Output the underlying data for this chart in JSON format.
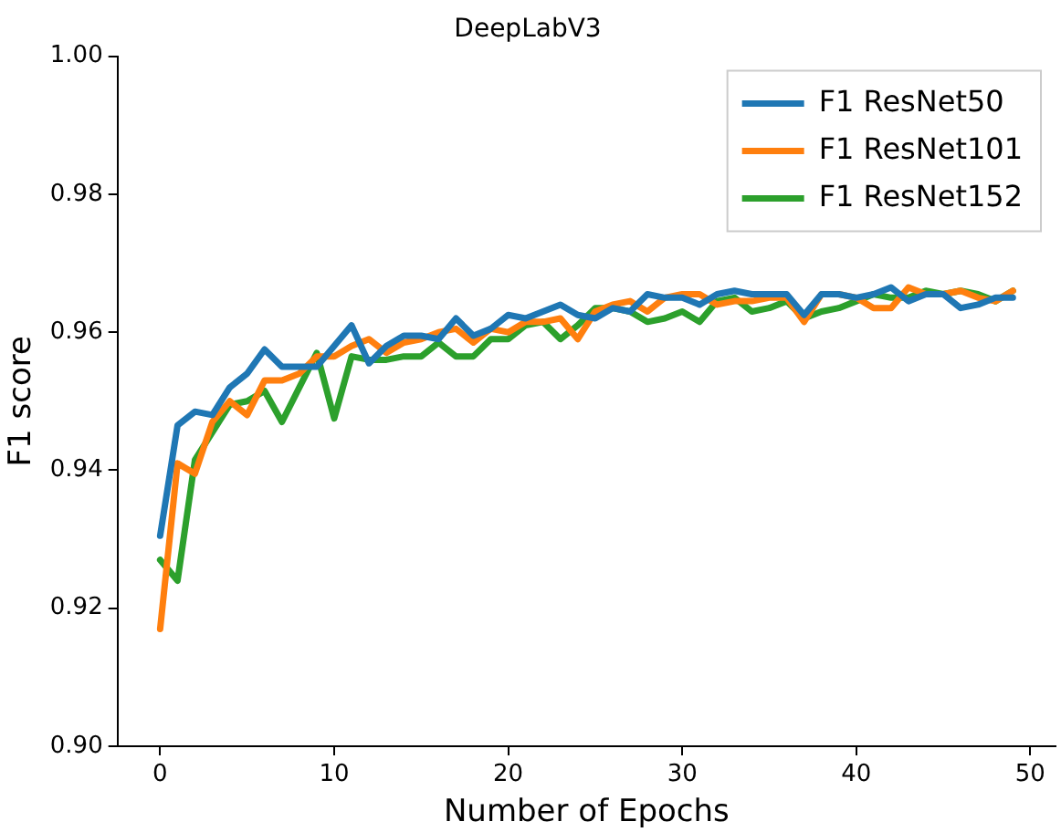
{
  "chart_data": {
    "type": "line",
    "title": "DeepLabV3",
    "xlabel": "Number of Epochs",
    "ylabel": "F1 score",
    "x": [
      0,
      1,
      2,
      3,
      4,
      5,
      6,
      7,
      8,
      9,
      10,
      11,
      12,
      13,
      14,
      15,
      16,
      17,
      18,
      19,
      20,
      21,
      22,
      23,
      24,
      25,
      26,
      27,
      28,
      29,
      30,
      31,
      32,
      33,
      34,
      35,
      36,
      37,
      38,
      39,
      40,
      41,
      42,
      43,
      44,
      45,
      46,
      47,
      48,
      49
    ],
    "xlim": [
      -2.45,
      51.45
    ],
    "xticks": [
      0,
      10,
      20,
      30,
      40,
      50
    ],
    "ylim": [
      0.9,
      1.0
    ],
    "yticks": [
      {
        "value": 0.9,
        "label": "0.90"
      },
      {
        "value": 0.92,
        "label": "0.92"
      },
      {
        "value": 0.94,
        "label": "0.94"
      },
      {
        "value": 0.96,
        "label": "0.96"
      },
      {
        "value": 0.98,
        "label": "0.98"
      },
      {
        "value": 1.0,
        "label": "1.00"
      }
    ],
    "legend": "top right",
    "marker": "none",
    "line_style": "solid",
    "grid": false,
    "series": [
      {
        "name": "F1 ResNet50",
        "color": "#1f77b4",
        "values": [
          0.9305,
          0.9465,
          0.9485,
          0.948,
          0.952,
          0.954,
          0.9575,
          0.955,
          0.955,
          0.955,
          0.958,
          0.961,
          0.9555,
          0.958,
          0.9595,
          0.9595,
          0.959,
          0.962,
          0.9595,
          0.9605,
          0.9625,
          0.962,
          0.963,
          0.964,
          0.9625,
          0.962,
          0.9635,
          0.963,
          0.9655,
          0.965,
          0.965,
          0.964,
          0.9655,
          0.966,
          0.9655,
          0.9655,
          0.9655,
          0.9625,
          0.9655,
          0.9655,
          0.965,
          0.9655,
          0.9665,
          0.9645,
          0.9655,
          0.9655,
          0.9635,
          0.964,
          0.965,
          0.965
        ]
      },
      {
        "name": "F1 ResNet101",
        "color": "#ff7f0e",
        "values": [
          0.917,
          0.941,
          0.9395,
          0.947,
          0.95,
          0.948,
          0.953,
          0.953,
          0.954,
          0.9565,
          0.9565,
          0.958,
          0.959,
          0.957,
          0.9585,
          0.959,
          0.96,
          0.9605,
          0.9585,
          0.9605,
          0.96,
          0.9615,
          0.9615,
          0.962,
          0.959,
          0.963,
          0.964,
          0.9645,
          0.963,
          0.965,
          0.9655,
          0.9655,
          0.964,
          0.9645,
          0.9645,
          0.965,
          0.965,
          0.9615,
          0.9655,
          0.9655,
          0.965,
          0.9635,
          0.9635,
          0.9665,
          0.9655,
          0.9655,
          0.966,
          0.965,
          0.9645,
          0.966
        ]
      },
      {
        "name": "F1 ResNet152",
        "color": "#2ca02c",
        "values": [
          0.927,
          0.924,
          0.9415,
          0.9455,
          0.9495,
          0.95,
          0.9515,
          0.947,
          0.952,
          0.957,
          0.9475,
          0.9565,
          0.956,
          0.956,
          0.9565,
          0.9565,
          0.9585,
          0.9565,
          0.9565,
          0.959,
          0.959,
          0.961,
          0.9615,
          0.959,
          0.961,
          0.9635,
          0.9635,
          0.963,
          0.9615,
          0.962,
          0.963,
          0.9615,
          0.9645,
          0.965,
          0.963,
          0.9635,
          0.9645,
          0.962,
          0.963,
          0.9635,
          0.9645,
          0.9655,
          0.965,
          0.965,
          0.966,
          0.9655,
          0.966,
          0.9655,
          0.9645,
          0.966
        ]
      }
    ]
  }
}
